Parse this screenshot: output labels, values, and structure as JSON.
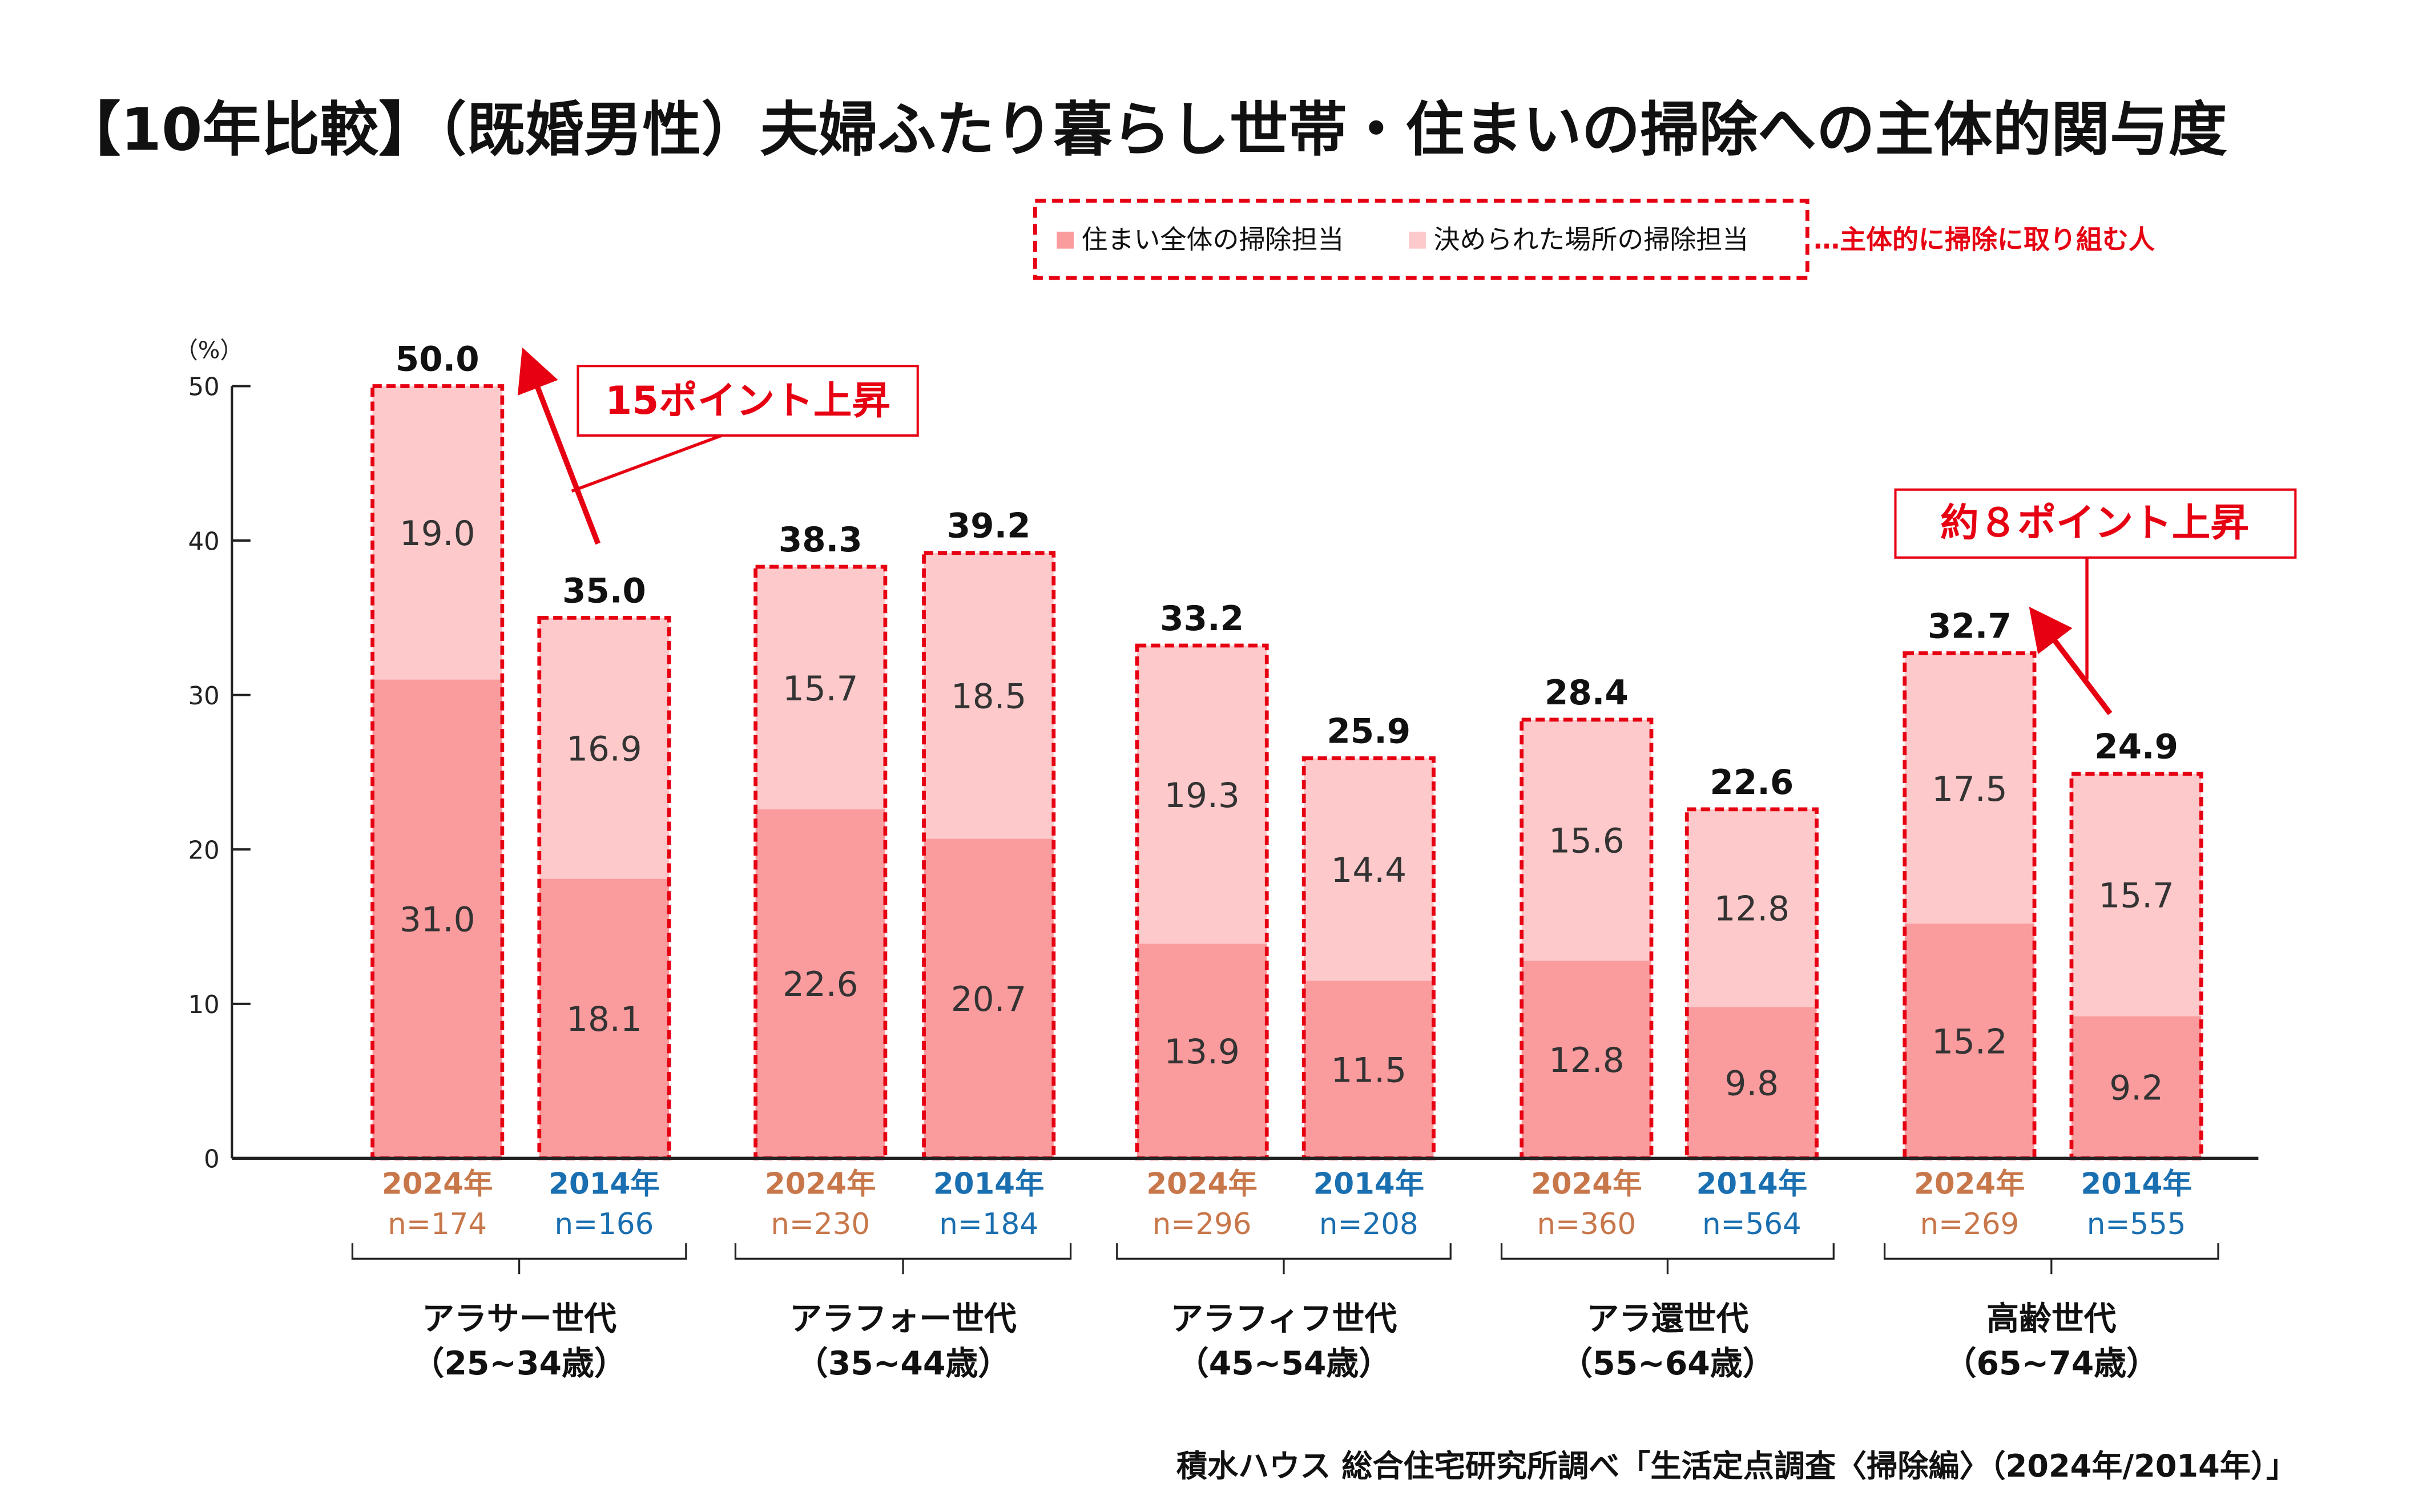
{
  "title": "【10年比較】（既婚男性）夫婦ふたり暮らし世帯・住まいの掃除への主体的関与度",
  "source": "積水ハウス 総合住宅研究所調べ「生活定点調査〈掃除編〉（2024年/2014年）」",
  "colors": {
    "whole": "#fa9b9d",
    "place": "#fdc9ca",
    "accent": "#e60012",
    "y2024": "#c8774a",
    "y2014": "#1a6fb0"
  },
  "legend": {
    "whole": "住まい全体の掃除担当",
    "place": "決められた場所の掃除担当",
    "note": "…主体的に掃除に取り組む人"
  },
  "annotations": {
    "a1": "15ポイント上昇",
    "a2": "約８ポイント上昇"
  },
  "chart_data": {
    "type": "bar",
    "stacked": true,
    "ylabel": "（%）",
    "ylim": [
      0,
      50
    ],
    "yticks": [
      "0",
      "10",
      "20",
      "30",
      "40",
      "50"
    ],
    "groups": [
      {
        "label": "アラサー世代",
        "age": "（25~34歳）"
      },
      {
        "label": "アラフォー世代",
        "age": "（35~44歳）"
      },
      {
        "label": "アラフィフ世代",
        "age": "（45~54歳）"
      },
      {
        "label": "アラ還世代",
        "age": "（55~64歳）"
      },
      {
        "label": "高齢世代",
        "age": "（65~74歳）"
      }
    ],
    "bars": [
      {
        "year": "2024年",
        "n": "n=174",
        "whole": 31.0,
        "place": 19.0,
        "total": 50.0
      },
      {
        "year": "2014年",
        "n": "n=166",
        "whole": 18.1,
        "place": 16.9,
        "total": 35.0
      },
      {
        "year": "2024年",
        "n": "n=230",
        "whole": 22.6,
        "place": 15.7,
        "total": 38.3
      },
      {
        "year": "2014年",
        "n": "n=184",
        "whole": 20.7,
        "place": 18.5,
        "total": 39.2
      },
      {
        "year": "2024年",
        "n": "n=296",
        "whole": 13.9,
        "place": 19.3,
        "total": 33.2
      },
      {
        "year": "2014年",
        "n": "n=208",
        "whole": 11.5,
        "place": 14.4,
        "total": 25.9
      },
      {
        "year": "2024年",
        "n": "n=360",
        "whole": 12.8,
        "place": 15.6,
        "total": 28.4
      },
      {
        "year": "2014年",
        "n": "n=564",
        "whole": 9.8,
        "place": 12.8,
        "total": 22.6
      },
      {
        "year": "2024年",
        "n": "n=269",
        "whole": 15.2,
        "place": 17.5,
        "total": 32.7
      },
      {
        "year": "2014年",
        "n": "n=555",
        "whole": 9.2,
        "place": 15.7,
        "total": 24.9
      }
    ]
  }
}
